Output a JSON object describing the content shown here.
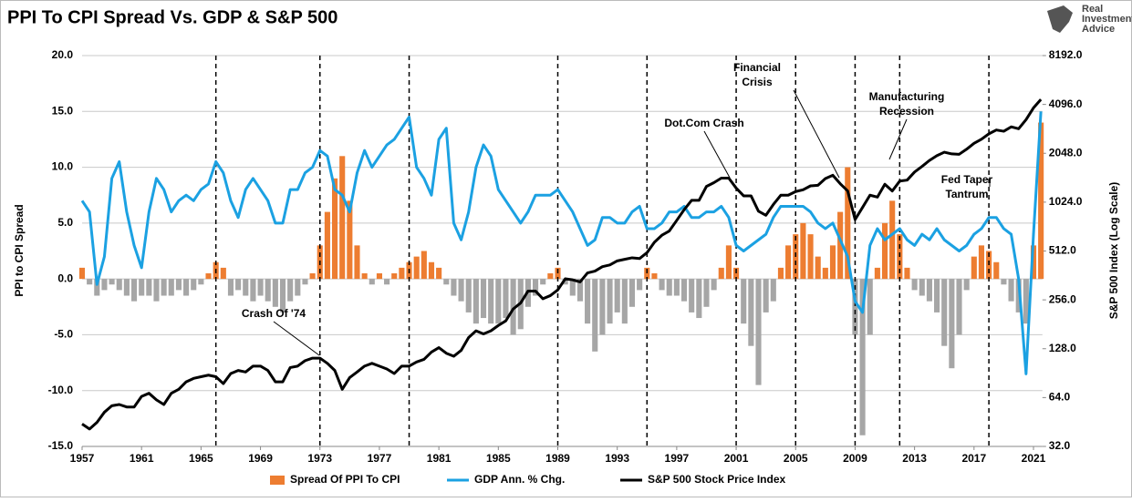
{
  "chart_data": {
    "type": "bar_line",
    "title": "PPI To CPI Spread Vs. GDP & S&P 500",
    "logo": [
      "Real",
      "Investment",
      "Advice"
    ],
    "ylabel": "PPI to CPI Spread",
    "y2label": "S&P 500 Index (Log Scale)",
    "xlim": [
      1957,
      2021.6
    ],
    "xticks": [
      1957,
      1961,
      1965,
      1969,
      1973,
      1977,
      1981,
      1985,
      1989,
      1993,
      1997,
      2001,
      2005,
      2009,
      2013,
      2017,
      2021
    ],
    "ylim": [
      -15,
      20
    ],
    "yticks": [
      {
        "value": -15,
        "label": "-15.0"
      },
      {
        "value": -10,
        "label": "-10.0"
      },
      {
        "value": -5,
        "label": "-5.0"
      },
      {
        "value": 0,
        "label": "0.0"
      },
      {
        "value": 5,
        "label": "5.0"
      },
      {
        "value": 10,
        "label": "10.0"
      },
      {
        "value": 15,
        "label": "15.0"
      },
      {
        "value": 20,
        "label": "20.0"
      }
    ],
    "y2lim": [
      32,
      8192
    ],
    "y2log": true,
    "y2ticks": [
      {
        "value": 32,
        "label": "32.0"
      },
      {
        "value": 64,
        "label": "64.0"
      },
      {
        "value": 128,
        "label": "128.0"
      },
      {
        "value": 256,
        "label": "256.0"
      },
      {
        "value": 512,
        "label": "512.0"
      },
      {
        "value": 1024,
        "label": "1024.0"
      },
      {
        "value": 2048,
        "label": "2048.0"
      },
      {
        "value": 4096,
        "label": "4096.0"
      },
      {
        "value": 8192,
        "label": "8192.0"
      }
    ],
    "grid": true,
    "vlines": [
      1966,
      1973,
      1979,
      1989,
      1995,
      2001,
      2005,
      2009,
      2012,
      2018
    ],
    "x": [
      1957,
      1957.5,
      1958,
      1958.5,
      1959,
      1959.5,
      1960,
      1960.5,
      1961,
      1961.5,
      1962,
      1962.5,
      1963,
      1963.5,
      1964,
      1964.5,
      1965,
      1965.5,
      1966,
      1966.5,
      1967,
      1967.5,
      1968,
      1968.5,
      1969,
      1969.5,
      1970,
      1970.5,
      1971,
      1971.5,
      1972,
      1972.5,
      1973,
      1973.5,
      1974,
      1974.5,
      1975,
      1975.5,
      1976,
      1976.5,
      1977,
      1977.5,
      1978,
      1978.5,
      1979,
      1979.5,
      1980,
      1980.5,
      1981,
      1981.5,
      1982,
      1982.5,
      1983,
      1983.5,
      1984,
      1984.5,
      1985,
      1985.5,
      1986,
      1986.5,
      1987,
      1987.5,
      1988,
      1988.5,
      1989,
      1989.5,
      1990,
      1990.5,
      1991,
      1991.5,
      1992,
      1992.5,
      1993,
      1993.5,
      1994,
      1994.5,
      1995,
      1995.5,
      1996,
      1996.5,
      1997,
      1997.5,
      1998,
      1998.5,
      1999,
      1999.5,
      2000,
      2000.5,
      2001,
      2001.5,
      2002,
      2002.5,
      2003,
      2003.5,
      2004,
      2004.5,
      2005,
      2005.5,
      2006,
      2006.5,
      2007,
      2007.5,
      2008,
      2008.5,
      2009,
      2009.5,
      2010,
      2010.5,
      2011,
      2011.5,
      2012,
      2012.5,
      2013,
      2013.5,
      2014,
      2014.5,
      2015,
      2015.5,
      2016,
      2016.5,
      2017,
      2017.5,
      2018,
      2018.5,
      2019,
      2019.5,
      2020,
      2020.5,
      2021,
      2021.5
    ],
    "series": [
      {
        "name": "Spread Of PPI To CPI",
        "kind": "bar",
        "color": "#ed7d31",
        "negative_color": "#a6a6a6",
        "values": [
          1,
          -0.5,
          -1.5,
          -1,
          -0.5,
          -1,
          -1.5,
          -2,
          -1.5,
          -1.5,
          -2,
          -1.5,
          -1.5,
          -1,
          -1.5,
          -1,
          -0.5,
          0.5,
          1.5,
          1,
          -1.5,
          -1,
          -1.5,
          -2,
          -1.5,
          -2,
          -2.5,
          -3,
          -2,
          -1.5,
          -0.5,
          0.5,
          3,
          6,
          9,
          11,
          7,
          3,
          0.5,
          -0.5,
          0.5,
          -0.5,
          0.5,
          1,
          1.5,
          2,
          2.5,
          1.5,
          1,
          -0.5,
          -1.5,
          -2,
          -3,
          -4,
          -3.5,
          -4,
          -4,
          -3.5,
          -5,
          -4.5,
          -2.5,
          -1.5,
          -0.5,
          0.5,
          1,
          -0.5,
          -1.5,
          -2,
          -4,
          -6.5,
          -5,
          -4,
          -3,
          -4,
          -2.5,
          -1,
          1,
          0.5,
          -1,
          -1.5,
          -1.5,
          -2,
          -3,
          -3.5,
          -2.5,
          -1,
          1,
          3,
          1,
          -4,
          -6,
          -9.5,
          -3,
          -2,
          1,
          3,
          4,
          5,
          4,
          2,
          1,
          3,
          6,
          10,
          -5,
          -14,
          -5,
          1,
          5,
          7,
          4,
          1,
          -1,
          -1.5,
          -2,
          -3,
          -6,
          -8,
          -5,
          -1,
          2,
          3,
          2.5,
          1.5,
          -0.5,
          -2,
          -3,
          -4,
          3,
          14
        ]
      },
      {
        "name": "GDP Ann. % Chg.",
        "kind": "line",
        "color": "#1ba1e2",
        "values": [
          7,
          6,
          -0.5,
          2,
          9,
          10.5,
          6,
          3,
          1,
          6,
          9,
          8,
          6,
          7,
          7.5,
          7,
          8,
          8.5,
          10.5,
          9.5,
          7,
          5.5,
          8,
          9,
          8,
          7,
          5,
          5,
          8,
          8,
          9.5,
          10,
          11.5,
          11,
          8,
          7.5,
          6,
          9.5,
          11.5,
          10,
          11,
          12,
          12.5,
          13.5,
          14.5,
          10,
          9,
          7.5,
          12.5,
          13.5,
          5,
          3.5,
          6,
          10,
          12,
          11,
          8,
          7,
          6,
          5,
          6,
          7.5,
          7.5,
          7.5,
          8,
          7,
          6,
          4.5,
          3,
          3.5,
          5.5,
          5.5,
          5,
          5,
          6,
          6.5,
          4.5,
          4.5,
          5,
          6,
          6,
          6.5,
          5.5,
          5.5,
          6,
          6,
          6.5,
          5.5,
          3,
          2.5,
          3,
          3.5,
          4,
          5.5,
          6.5,
          6.5,
          6.5,
          6.5,
          6,
          5,
          4.5,
          5,
          3.5,
          2,
          -2,
          -3,
          3,
          4.5,
          3.5,
          4,
          4.5,
          3.5,
          3,
          4,
          3.5,
          4.5,
          3.5,
          3,
          2.5,
          3,
          4,
          4.5,
          5.5,
          5.5,
          4.5,
          4,
          0,
          -8.5,
          4,
          15
        ]
      },
      {
        "name": "S&P 500 Stock Price Index",
        "kind": "line",
        "axis": "y2",
        "color": "#000000",
        "values": [
          44,
          41,
          45,
          52,
          57,
          58,
          56,
          56,
          65,
          68,
          62,
          58,
          68,
          72,
          80,
          84,
          86,
          88,
          86,
          78,
          90,
          94,
          92,
          100,
          100,
          94,
          80,
          80,
          98,
          100,
          108,
          112,
          112,
          104,
          94,
          72,
          85,
          92,
          100,
          104,
          100,
          96,
          90,
          100,
          100,
          106,
          110,
          122,
          130,
          120,
          115,
          125,
          150,
          165,
          158,
          165,
          178,
          190,
          225,
          245,
          290,
          290,
          260,
          272,
          295,
          345,
          340,
          330,
          375,
          385,
          410,
          420,
          445,
          455,
          465,
          460,
          500,
          580,
          640,
          680,
          790,
          920,
          1050,
          1050,
          1280,
          1350,
          1440,
          1440,
          1250,
          1120,
          1120,
          900,
          850,
          990,
          1130,
          1130,
          1190,
          1220,
          1290,
          1300,
          1430,
          1500,
          1330,
          1200,
          800,
          950,
          1130,
          1100,
          1320,
          1200,
          1380,
          1400,
          1570,
          1700,
          1850,
          1980,
          2080,
          2030,
          2020,
          2170,
          2360,
          2500,
          2700,
          2850,
          2800,
          2980,
          2900,
          3300,
          3900,
          4400
        ]
      }
    ],
    "annotations": [
      {
        "text": [
          "Crash Of '74"
        ]
      },
      {
        "text": [
          "Dot.Com Crash"
        ]
      },
      {
        "text": [
          "Financial",
          "Crisis"
        ]
      },
      {
        "text": [
          "Manufacturing",
          "Recession"
        ]
      },
      {
        "text": [
          "Fed Taper",
          "Tantrum"
        ]
      }
    ]
  }
}
